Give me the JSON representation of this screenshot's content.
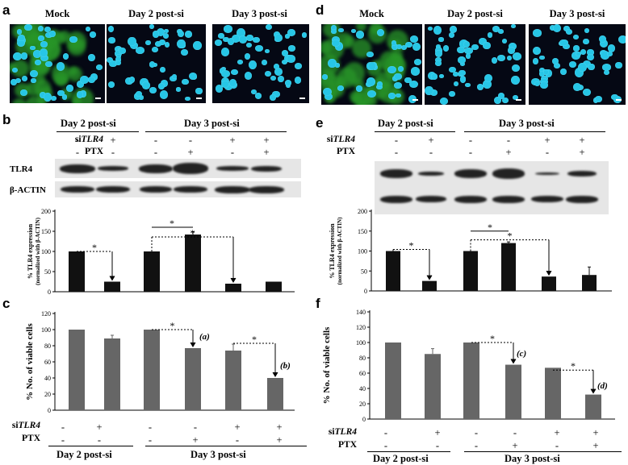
{
  "panel_labels": [
    "a",
    "b",
    "c",
    "d",
    "e",
    "f"
  ],
  "micrograph_titles": [
    "Mock",
    "Day 2 post-si",
    "Day 3 post-si"
  ],
  "treatments": {
    "day2_label": "Day 2 post-si",
    "day3_label": "Day 3 post-si",
    "sitlr4_label": "si",
    "sitlr4_italic": "TLR4",
    "ptx_label": "PTX",
    "sitlr4_signs": [
      "-",
      "+",
      "-",
      "-",
      "+",
      "+"
    ],
    "ptx_signs": [
      "-",
      "-",
      "-",
      "+",
      "-",
      "+"
    ]
  },
  "blot_rows": {
    "b": [
      "TLR4",
      "β-ACTIN"
    ],
    "e": []
  },
  "colors": {
    "bar_tlr4": "#111111",
    "bar_viability": "#666666",
    "nuclei": "#27c6e6",
    "background": "#050814",
    "tlr4_signal": "#2a9a2a"
  },
  "chart_data": [
    {
      "panel": "b",
      "type": "bar",
      "ylabel_line1": "% TLR4 expression",
      "ylabel_line2": "(normalized with β-ACTIN)",
      "ylim": [
        0,
        200
      ],
      "yticks": [
        0,
        50,
        100,
        150,
        200
      ],
      "values": [
        100,
        25,
        100,
        142,
        20,
        25
      ],
      "errors": [
        0,
        0,
        0,
        7,
        0,
        0
      ],
      "annotations": [
        "*",
        "*",
        "*"
      ]
    },
    {
      "panel": "c",
      "type": "bar",
      "ylabel": "% No. of viable cells",
      "ylim": [
        0,
        120
      ],
      "yticks": [
        0,
        20,
        40,
        60,
        80,
        100,
        120
      ],
      "values": [
        100,
        89,
        100,
        77,
        74,
        40
      ],
      "errors": [
        0,
        4,
        0,
        0,
        8,
        0
      ],
      "annotations": [
        "*",
        "(a)",
        "*",
        "(b)"
      ]
    },
    {
      "panel": "e",
      "type": "bar",
      "ylabel_line1": "% TLR4 expression",
      "ylabel_line2": "(normalized with β-ACTIN)",
      "ylim": [
        0,
        200
      ],
      "yticks": [
        0,
        50,
        100,
        150,
        200
      ],
      "values": [
        100,
        25,
        100,
        120,
        36,
        40
      ],
      "errors": [
        0,
        0,
        0,
        3,
        0,
        20
      ],
      "annotations": [
        "*",
        "*",
        "*"
      ]
    },
    {
      "panel": "f",
      "type": "bar",
      "ylabel": "% No. of viable cells",
      "ylim": [
        0,
        140
      ],
      "yticks": [
        0,
        20,
        40,
        60,
        80,
        100,
        120,
        140
      ],
      "values": [
        100,
        85,
        100,
        71,
        67,
        32
      ],
      "errors": [
        0,
        7,
        0,
        0,
        0,
        0
      ],
      "annotations": [
        "*",
        "(c)",
        "*",
        "(d)"
      ]
    }
  ]
}
